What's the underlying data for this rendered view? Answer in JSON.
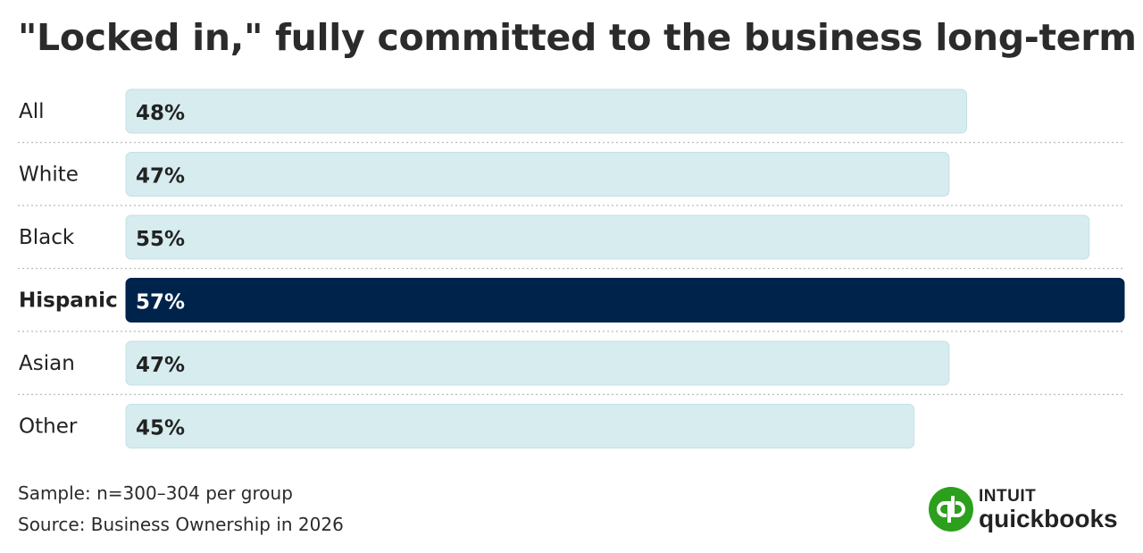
{
  "title": "\"Locked in,\" fully committed to the business long-term",
  "chart_data": {
    "type": "bar",
    "orientation": "horizontal",
    "categories": [
      "All",
      "White",
      "Black",
      "Hispanic",
      "Asian",
      "Other"
    ],
    "values": [
      48,
      47,
      55,
      57,
      47,
      45
    ],
    "value_labels": [
      "48%",
      "47%",
      "55%",
      "57%",
      "47%",
      "45%"
    ],
    "highlight": "Hispanic",
    "xlim": [
      0,
      57
    ],
    "colors": {
      "bar": "#d6ecee",
      "bar_border": "#c4e0e4",
      "highlight": "#00234b",
      "label": "#222222",
      "highlight_label": "#ffffff",
      "divider": "#bbbbbb"
    }
  },
  "footnotes": {
    "sample": "Sample: n=300–304 per group",
    "source": "Source: Business Ownership in 2026"
  },
  "logo": {
    "icon": "quickbooks-logo-icon",
    "brand": "INTUIT",
    "product": "quickbooks",
    "color": "#2ca01c"
  }
}
